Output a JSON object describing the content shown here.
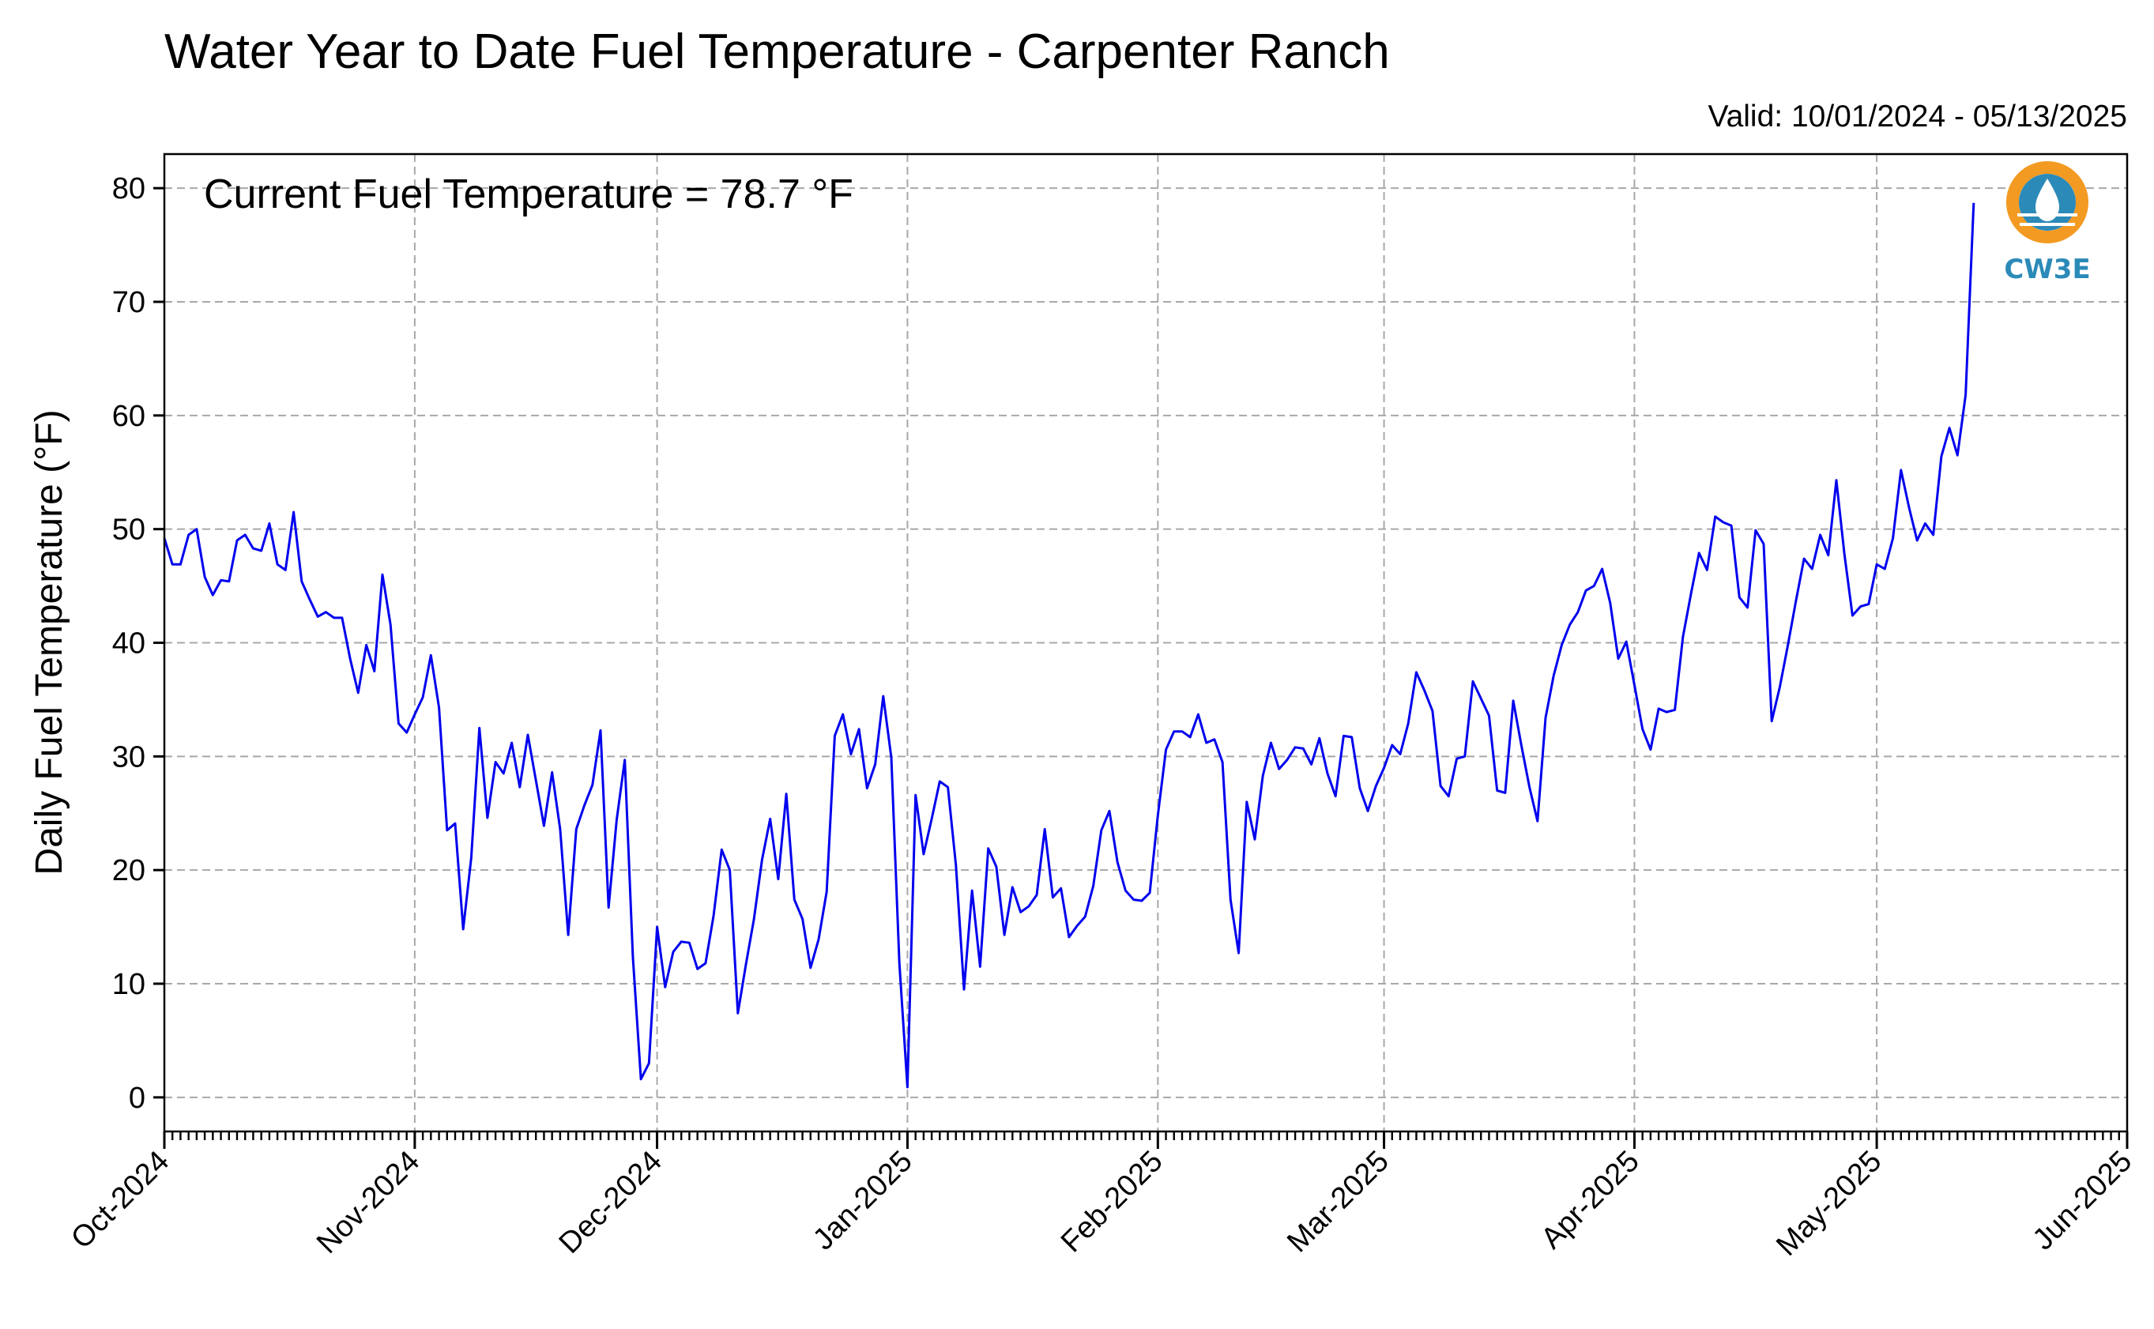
{
  "chart_data": {
    "type": "line",
    "title": "Water Year to Date Fuel Temperature - Carpenter Ranch",
    "valid_label": "Valid: 10/01/2024 - 05/13/2025",
    "annotation": "Current Fuel Temperature = 78.7 °F",
    "ylabel": "Daily Fuel Temperature (°F)",
    "xlabel": "",
    "ylim": [
      -3,
      83
    ],
    "yticks": [
      0,
      10,
      20,
      30,
      40,
      50,
      60,
      70,
      80
    ],
    "xlim": [
      "2024-10-01",
      "2025-06-01"
    ],
    "xticks": [
      {
        "date": "2024-10-01",
        "label": "Oct-2024"
      },
      {
        "date": "2024-11-01",
        "label": "Nov-2024"
      },
      {
        "date": "2024-12-01",
        "label": "Dec-2024"
      },
      {
        "date": "2025-01-01",
        "label": "Jan-2025"
      },
      {
        "date": "2025-02-01",
        "label": "Feb-2025"
      },
      {
        "date": "2025-03-01",
        "label": "Mar-2025"
      },
      {
        "date": "2025-04-01",
        "label": "Apr-2025"
      },
      {
        "date": "2025-05-01",
        "label": "May-2025"
      },
      {
        "date": "2025-06-01",
        "label": "Jun-2025"
      }
    ],
    "grid": true,
    "line_color": "#0000ee",
    "start_date": "2024-10-01",
    "interval": "daily",
    "values": [
      49.2,
      46.9,
      46.9,
      49.5,
      50.0,
      45.8,
      44.2,
      45.5,
      45.4,
      49.0,
      49.5,
      48.3,
      48.1,
      50.5,
      46.9,
      46.4,
      51.5,
      45.4,
      43.8,
      42.3,
      42.7,
      42.2,
      42.2,
      38.6,
      35.6,
      39.8,
      37.5,
      46.0,
      41.6,
      32.9,
      32.1,
      33.7,
      35.2,
      38.9,
      34.3,
      23.5,
      24.1,
      14.8,
      21.1,
      32.5,
      24.6,
      29.5,
      28.5,
      31.2,
      27.3,
      31.9,
      27.9,
      23.9,
      28.6,
      23.6,
      14.3,
      23.6,
      25.7,
      27.5,
      32.3,
      16.7,
      24.4,
      29.7,
      12.4,
      1.6,
      3.0,
      15.0,
      9.7,
      12.8,
      13.7,
      13.6,
      11.3,
      11.8,
      16.0,
      21.8,
      20.0,
      7.4,
      11.7,
      15.7,
      20.9,
      24.5,
      19.2,
      26.7,
      17.4,
      15.7,
      11.4,
      13.9,
      18.1,
      31.8,
      33.7,
      30.2,
      32.4,
      27.2,
      29.3,
      35.3,
      29.9,
      11.8,
      0.9,
      26.6,
      21.4,
      24.5,
      27.8,
      27.3,
      20.4,
      9.5,
      18.2,
      11.5,
      21.9,
      20.3,
      14.3,
      18.5,
      16.3,
      16.8,
      17.8,
      23.6,
      17.6,
      18.4,
      14.1,
      15.1,
      15.9,
      18.6,
      23.5,
      25.2,
      20.7,
      18.2,
      17.4,
      17.3,
      18.0,
      24.8,
      30.6,
      32.2,
      32.2,
      31.7,
      33.7,
      31.2,
      31.5,
      29.5,
      17.4,
      12.7,
      26.0,
      22.7,
      28.3,
      31.2,
      28.9,
      29.7,
      30.8,
      30.7,
      29.3,
      31.6,
      28.5,
      26.5,
      31.8,
      31.7,
      27.2,
      25.2,
      27.4,
      29.0,
      31.0,
      30.2,
      32.9,
      37.4,
      35.8,
      34.0,
      27.4,
      26.5,
      29.8,
      30.0,
      36.6,
      35.1,
      33.6,
      27.0,
      26.8,
      34.9,
      31.0,
      27.3,
      24.3,
      33.4,
      37.1,
      39.8,
      41.6,
      42.7,
      44.6,
      45.0,
      46.5,
      43.5,
      38.6,
      40.1,
      36.3,
      32.4,
      30.6,
      34.2,
      33.9,
      34.1,
      40.5,
      44.3,
      47.9,
      46.4,
      51.1,
      50.6,
      50.3,
      44.0,
      43.1,
      49.9,
      48.7,
      33.1,
      36.1,
      39.8,
      43.7,
      47.4,
      46.5,
      49.5,
      47.7,
      54.3,
      47.8,
      42.4,
      43.2,
      43.4,
      46.9,
      46.5,
      49.2,
      55.2,
      51.9,
      49.0,
      50.5,
      49.5,
      56.4,
      58.9,
      56.5,
      61.8,
      78.7
    ]
  },
  "logo": {
    "text": "CW3E",
    "ring_color": "#f39a22",
    "brand_color": "#2b8ab8"
  }
}
